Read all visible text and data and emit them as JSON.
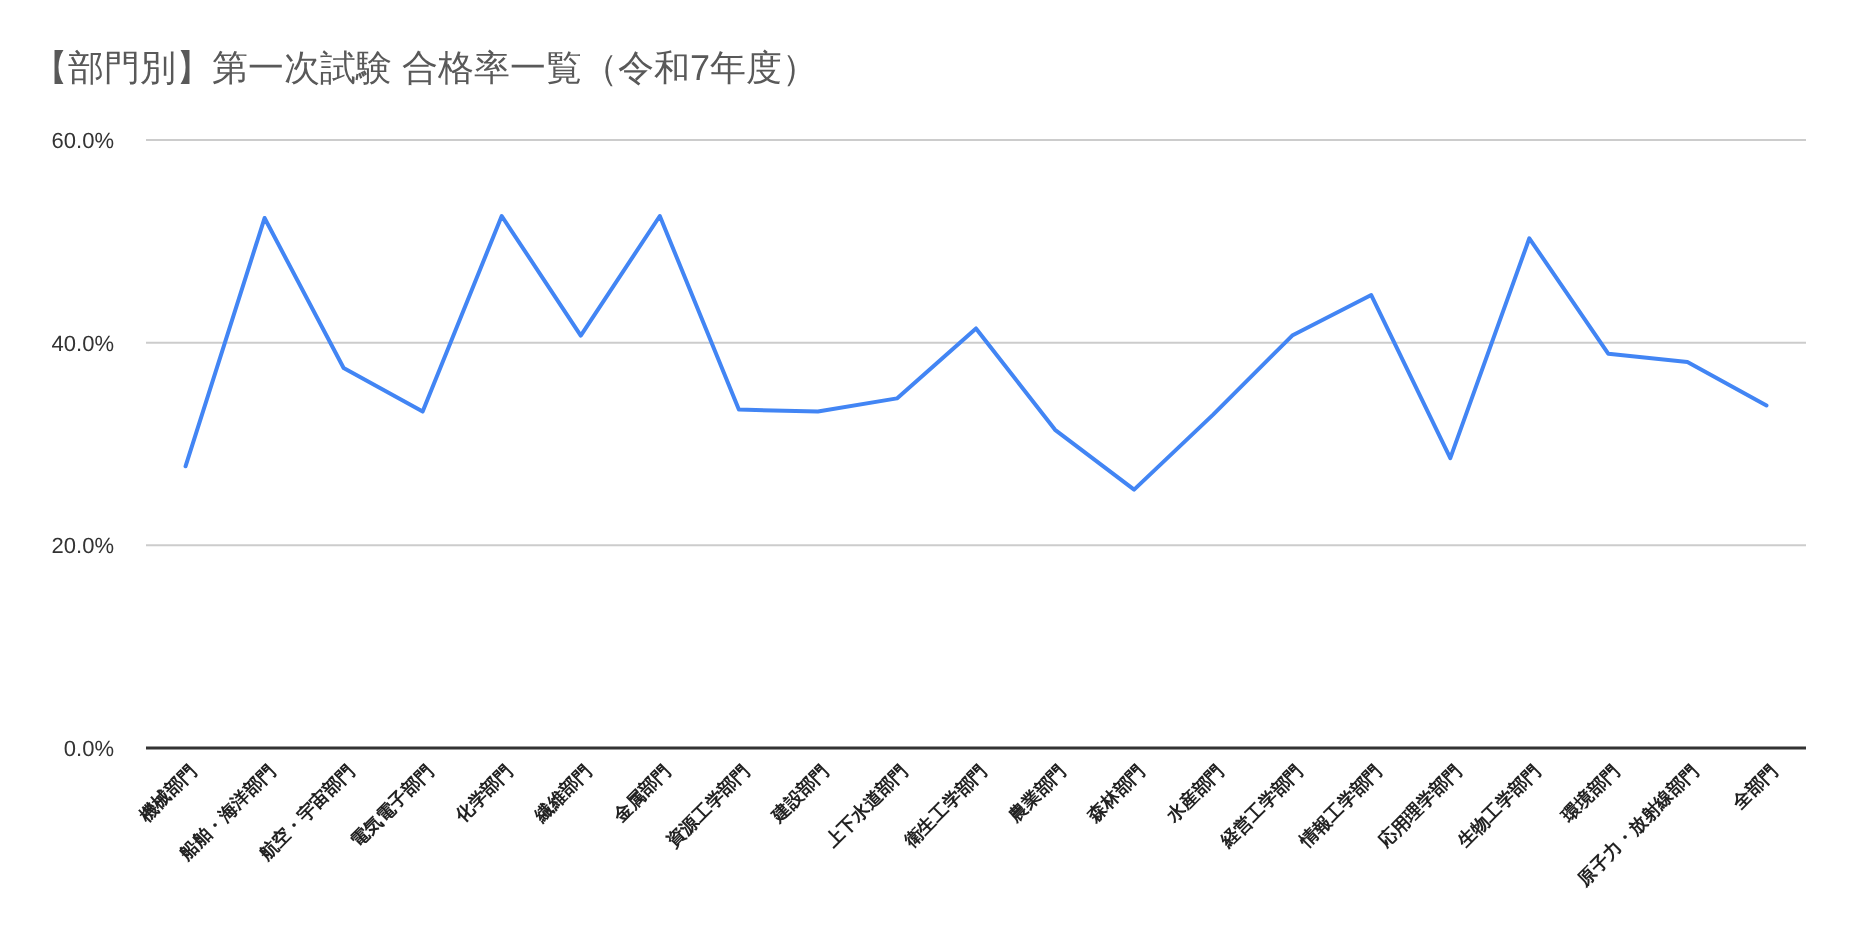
{
  "chart_data": {
    "type": "line",
    "title": "【部門別】第一次試験 合格率一覧（令和7年度）",
    "categories": [
      "機械部門",
      "船舶・海洋部門",
      "航空・宇宙部門",
      "電気電子部門",
      "化学部門",
      "繊維部門",
      "金属部門",
      "資源工学部門",
      "建設部門",
      "上下水道部門",
      "衛生工学部門",
      "農業部門",
      "森林部門",
      "水産部門",
      "経営工学部門",
      "情報工学部門",
      "応用理学部門",
      "生物工学部門",
      "環境部門",
      "原子力・放射線部門",
      "全部門"
    ],
    "series": [
      {
        "color": "#4285f4",
        "values": [
          27.8,
          52.3,
          37.5,
          33.2,
          52.5,
          40.7,
          52.5,
          33.4,
          33.2,
          34.5,
          41.4,
          31.4,
          25.5,
          32.9,
          40.7,
          44.7,
          28.6,
          50.3,
          38.9,
          38.1,
          33.8
        ]
      }
    ],
    "ylim": [
      0,
      60
    ],
    "yticks": [
      {
        "value": 0,
        "label": "0.0%"
      },
      {
        "value": 20,
        "label": "20.0%"
      },
      {
        "value": 40,
        "label": "40.0%"
      },
      {
        "value": 60,
        "label": "60.0%"
      }
    ],
    "grid": "y",
    "marker": "none",
    "line_style": "solid"
  }
}
